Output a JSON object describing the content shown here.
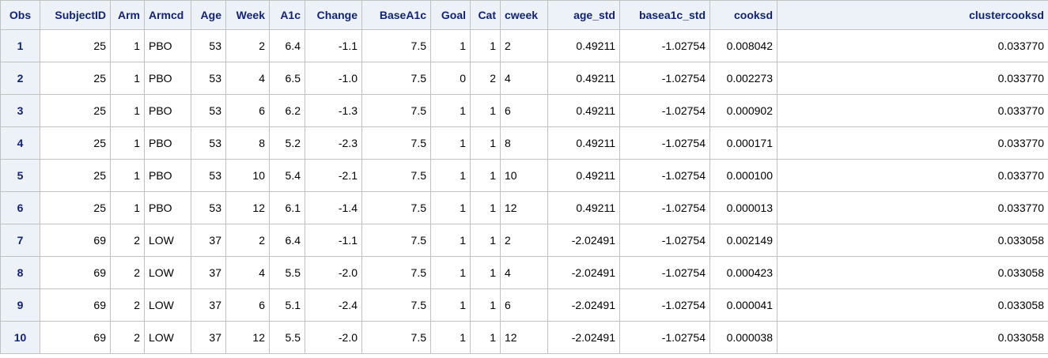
{
  "table": {
    "columns": [
      "Obs",
      "SubjectID",
      "Arm",
      "Armcd",
      "Age",
      "Week",
      "A1c",
      "Change",
      "BaseA1c",
      "Goal",
      "Cat",
      "cweek",
      "age_std",
      "basea1c_std",
      "cooksd",
      "clustercooksd"
    ],
    "rows": [
      [
        "1",
        "25",
        "1",
        "PBO",
        "53",
        "2",
        "6.4",
        "-1.1",
        "7.5",
        "1",
        "1",
        "2",
        "0.49211",
        "-1.02754",
        "0.008042",
        "0.033770"
      ],
      [
        "2",
        "25",
        "1",
        "PBO",
        "53",
        "4",
        "6.5",
        "-1.0",
        "7.5",
        "0",
        "2",
        "4",
        "0.49211",
        "-1.02754",
        "0.002273",
        "0.033770"
      ],
      [
        "3",
        "25",
        "1",
        "PBO",
        "53",
        "6",
        "6.2",
        "-1.3",
        "7.5",
        "1",
        "1",
        "6",
        "0.49211",
        "-1.02754",
        "0.000902",
        "0.033770"
      ],
      [
        "4",
        "25",
        "1",
        "PBO",
        "53",
        "8",
        "5.2",
        "-2.3",
        "7.5",
        "1",
        "1",
        "8",
        "0.49211",
        "-1.02754",
        "0.000171",
        "0.033770"
      ],
      [
        "5",
        "25",
        "1",
        "PBO",
        "53",
        "10",
        "5.4",
        "-2.1",
        "7.5",
        "1",
        "1",
        "10",
        "0.49211",
        "-1.02754",
        "0.000100",
        "0.033770"
      ],
      [
        "6",
        "25",
        "1",
        "PBO",
        "53",
        "12",
        "6.1",
        "-1.4",
        "7.5",
        "1",
        "1",
        "12",
        "0.49211",
        "-1.02754",
        "0.000013",
        "0.033770"
      ],
      [
        "7",
        "69",
        "2",
        "LOW",
        "37",
        "2",
        "6.4",
        "-1.1",
        "7.5",
        "1",
        "1",
        "2",
        "-2.02491",
        "-1.02754",
        "0.002149",
        "0.033058"
      ],
      [
        "8",
        "69",
        "2",
        "LOW",
        "37",
        "4",
        "5.5",
        "-2.0",
        "7.5",
        "1",
        "1",
        "4",
        "-2.02491",
        "-1.02754",
        "0.000423",
        "0.033058"
      ],
      [
        "9",
        "69",
        "2",
        "LOW",
        "37",
        "6",
        "5.1",
        "-2.4",
        "7.5",
        "1",
        "1",
        "6",
        "-2.02491",
        "-1.02754",
        "0.000041",
        "0.033058"
      ],
      [
        "10",
        "69",
        "2",
        "LOW",
        "37",
        "12",
        "5.5",
        "-2.0",
        "7.5",
        "1",
        "1",
        "12",
        "-2.02491",
        "-1.02754",
        "0.000038",
        "0.033058"
      ]
    ]
  },
  "colors": {
    "header_background": "#edf2f9",
    "header_text": "#112277",
    "grid_line": "#c1c1c1"
  }
}
